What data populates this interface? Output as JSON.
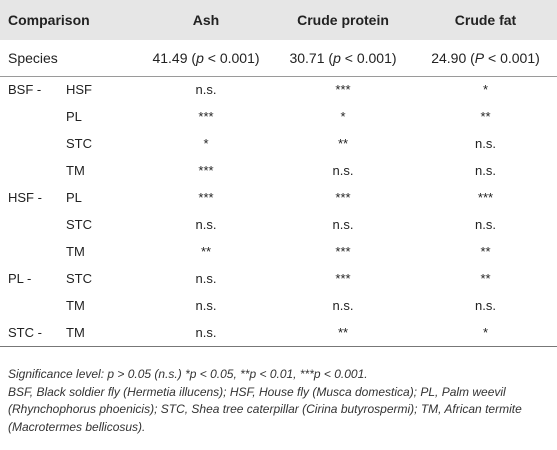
{
  "header": {
    "comparison": "Comparison",
    "ash": "Ash",
    "crude_protein": "Crude protein",
    "crude_fat": "Crude fat"
  },
  "species_row": {
    "label": "Species",
    "ash": {
      "stat": "41.49 (",
      "p": "p",
      "rest": " < 0.001)"
    },
    "crude_protein": {
      "stat": "30.71 (",
      "p": "p",
      "rest": " < 0.001)"
    },
    "crude_fat": {
      "stat": "24.90 (",
      "p": "P",
      "rest": " < 0.001)"
    }
  },
  "rows": [
    {
      "group": "BSF -",
      "comparison": "HSF",
      "ash": "n.s.",
      "crude_protein": "***",
      "crude_fat": "*"
    },
    {
      "group": "",
      "comparison": "PL",
      "ash": "***",
      "crude_protein": "*",
      "crude_fat": "**"
    },
    {
      "group": "",
      "comparison": "STC",
      "ash": "*",
      "crude_protein": "**",
      "crude_fat": "n.s."
    },
    {
      "group": "",
      "comparison": "TM",
      "ash": "***",
      "crude_protein": "n.s.",
      "crude_fat": "n.s."
    },
    {
      "group": "HSF -",
      "comparison": "PL",
      "ash": "***",
      "crude_protein": "***",
      "crude_fat": "***"
    },
    {
      "group": "",
      "comparison": "STC",
      "ash": "n.s.",
      "crude_protein": "n.s.",
      "crude_fat": "n.s."
    },
    {
      "group": "",
      "comparison": "TM",
      "ash": "**",
      "crude_protein": "***",
      "crude_fat": "**"
    },
    {
      "group": "PL -",
      "comparison": "STC",
      "ash": "n.s.",
      "crude_protein": "***",
      "crude_fat": "**"
    },
    {
      "group": "",
      "comparison": "TM",
      "ash": "n.s.",
      "crude_protein": "n.s.",
      "crude_fat": "n.s."
    },
    {
      "group": "STC -",
      "comparison": "TM",
      "ash": "n.s.",
      "crude_protein": "**",
      "crude_fat": "*"
    }
  ],
  "notes": {
    "significance": "Significance level: p > 0.05 (n.s.) *p < 0.05, **p < 0.01, ***p < 0.001.",
    "abbreviations": "BSF, Black soldier fly (Hermetia illucens); HSF, House fly (Musca domestica); PL, Palm weevil (Rhynchophorus phoenicis); STC, Shea tree caterpillar (Cirina butyrospermi); TM, African termite (Macrotermes bellicosus)."
  }
}
